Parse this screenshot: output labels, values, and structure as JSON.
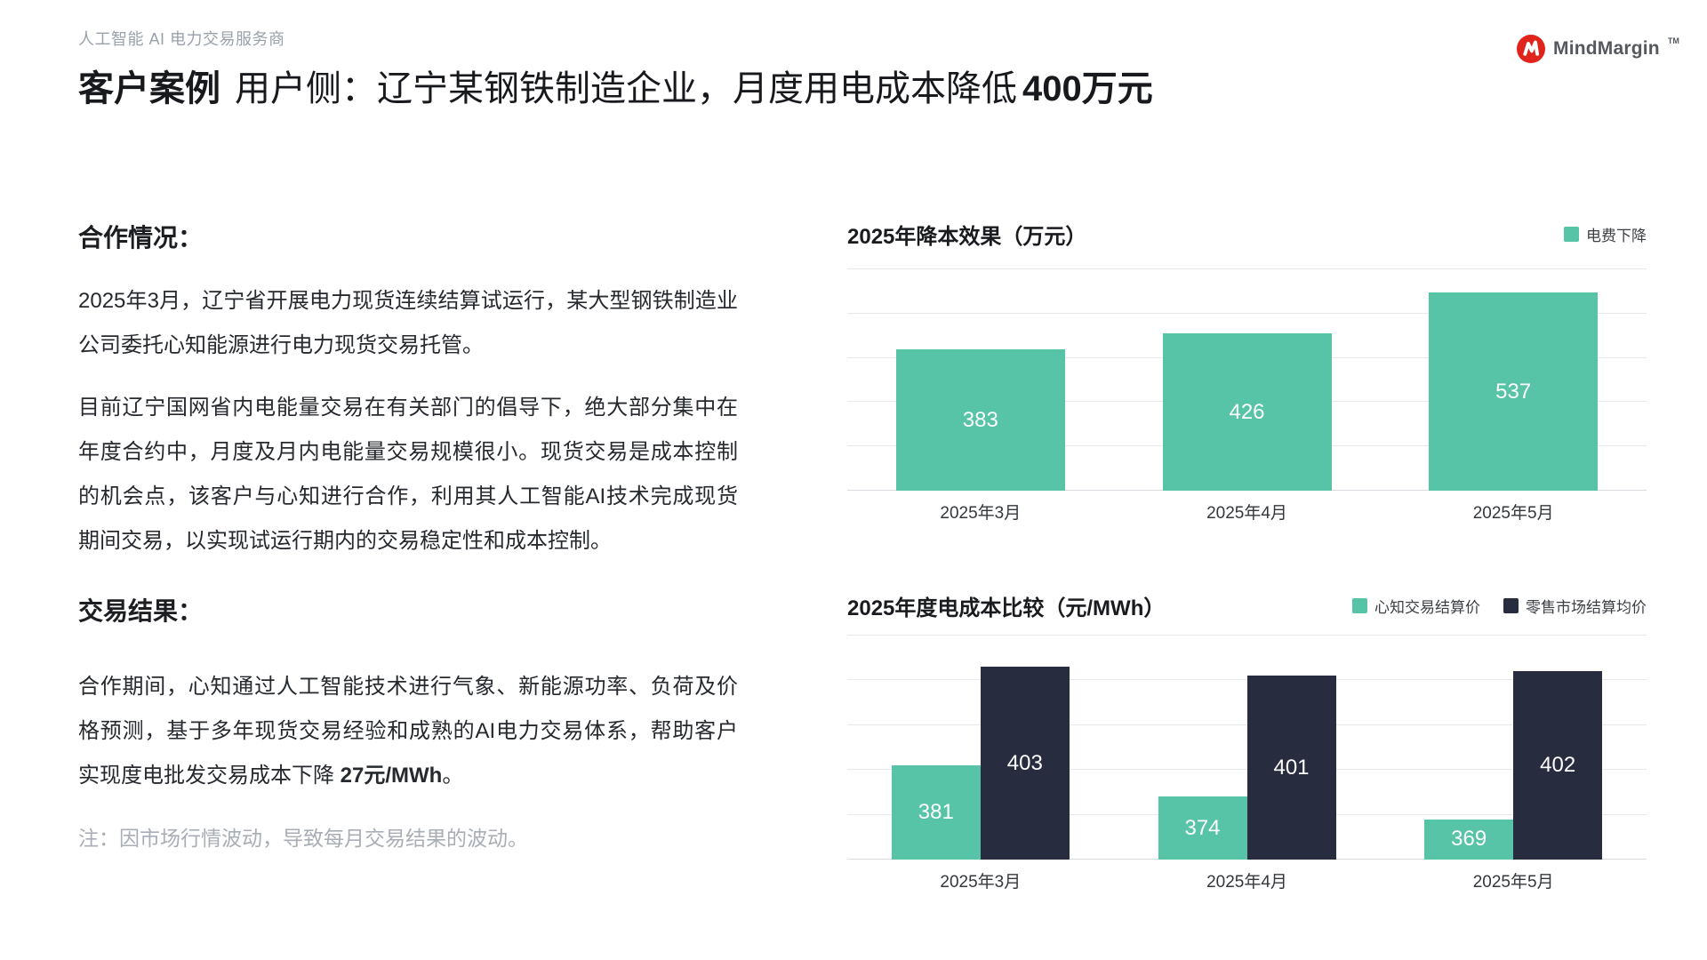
{
  "header": {
    "tagline": "人工智能 AI 电力交易服务商",
    "brand": "MindMargin",
    "brand_tm": "TM"
  },
  "title": {
    "lead": "客户案例",
    "main": "用户侧：辽宁某钢铁制造企业，月度用电成本降低",
    "highlight": "400万元"
  },
  "sections": {
    "cooperation": {
      "heading": "合作情况：",
      "paragraphs": [
        "2025年3月，辽宁省开展电力现货连续结算试运行，某大型钢铁制造业公司委托心知能源进行电力现货交易托管。",
        "目前辽宁国网省内电能量交易在有关部门的倡导下，绝大部分集中在年度合约中，月度及月内电能量交易规模很小。现货交易是成本控制的机会点，该客户与心知进行合作，利用其人工智能AI技术完成现货期间交易，以实现试运行期内的交易稳定性和成本控制。"
      ]
    },
    "result": {
      "heading": "交易结果：",
      "text_before": "合作期间，心知通过人工智能技术进行气象、新能源功率、负荷及价格预测，基于多年现货交易经验和成熟的AI电力交易体系，帮助客户实现度电批发交易成本下降 ",
      "highlight": "27元/MWh",
      "text_after": "。"
    },
    "note": "注：因市场行情波动，导致每月交易结果的波动。"
  },
  "colors": {
    "green": "#57C3A7",
    "navy": "#272C3F",
    "logo_red": "#E0241B"
  },
  "chart_data": [
    {
      "type": "bar",
      "title": "2025年降本效果（万元）",
      "categories": [
        "2025年3月",
        "2025年4月",
        "2025年5月"
      ],
      "series": [
        {
          "name": "电费下降",
          "color_key": "green",
          "values": [
            383,
            426,
            537
          ]
        }
      ],
      "xlabel": "",
      "ylabel": "",
      "ylim": [
        0,
        600
      ],
      "grid_interval": 120,
      "grid": true,
      "legend_position": "top-right",
      "value_labels": "inside-white"
    },
    {
      "type": "bar",
      "title": "2025年度电成本比较（元/MWh）",
      "categories": [
        "2025年3月",
        "2025年4月",
        "2025年5月"
      ],
      "series": [
        {
          "name": "心知交易结算价",
          "color_key": "green",
          "values": [
            381,
            374,
            369
          ]
        },
        {
          "name": "零售市场结算均价",
          "color_key": "navy",
          "values": [
            403,
            401,
            402
          ]
        }
      ],
      "xlabel": "",
      "ylabel": "",
      "ylim": [
        360,
        410
      ],
      "grid_interval": 10,
      "grid": true,
      "legend_position": "top-right",
      "value_labels": "inside-white"
    }
  ]
}
